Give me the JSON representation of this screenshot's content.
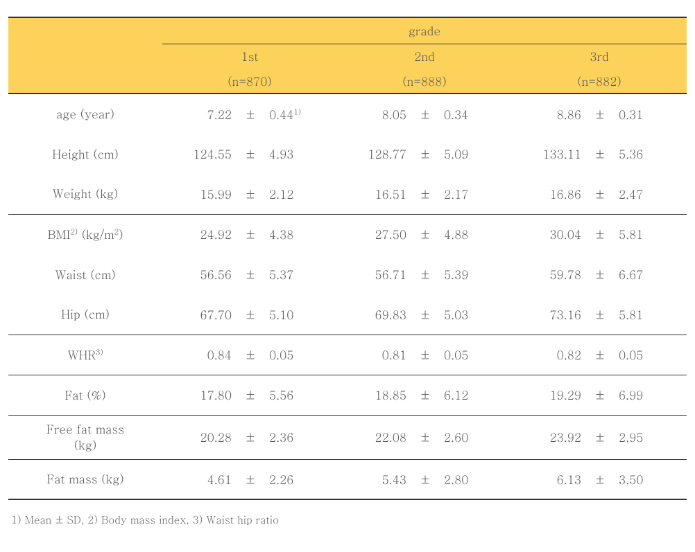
{
  "colors": {
    "header_bg": "#fcd25a",
    "text": "#555555",
    "border": "#333333",
    "footnote": "#666666",
    "background": "#ffffff"
  },
  "typography": {
    "body_fontsize_pt": 13,
    "footnote_fontsize_pt": 11,
    "font_family": "Batang / serif"
  },
  "header": {
    "span_title": "grade",
    "groups": [
      {
        "label": "1st",
        "n": "(n=870)"
      },
      {
        "label": "2nd",
        "n": "(n=888)"
      },
      {
        "label": "3rd",
        "n": "(n=882)"
      }
    ]
  },
  "pm": "±",
  "rows": [
    {
      "label_html": "age (year)",
      "g": [
        {
          "m": "7.22",
          "s": "0.44",
          "sup": "1)"
        },
        {
          "m": "8.05",
          "s": "0.34"
        },
        {
          "m": "8.86",
          "s": "0.31"
        }
      ],
      "rule": false
    },
    {
      "label_html": "Height (cm)",
      "g": [
        {
          "m": "124.55",
          "s": "4.93"
        },
        {
          "m": "128.77",
          "s": "5.09"
        },
        {
          "m": "133.11",
          "s": "5.36"
        }
      ],
      "rule": false
    },
    {
      "label_html": "Weight (kg)",
      "g": [
        {
          "m": "15.99",
          "s": "2.12"
        },
        {
          "m": "16.51",
          "s": "2.17"
        },
        {
          "m": "16.86",
          "s": "2.47"
        }
      ],
      "rule": true
    },
    {
      "label_html": "BMI<sup>2)</sup> (kg/m<sup>2</sup>)",
      "g": [
        {
          "m": "24.92",
          "s": "4.38"
        },
        {
          "m": "27.50",
          "s": "4.88"
        },
        {
          "m": "30.04",
          "s": "5.81"
        }
      ],
      "rule": false
    },
    {
      "label_html": "Waist (cm)",
      "g": [
        {
          "m": "56.56",
          "s": "5.37"
        },
        {
          "m": "56.71",
          "s": "5.39"
        },
        {
          "m": "59.78",
          "s": "6.67"
        }
      ],
      "rule": false
    },
    {
      "label_html": "Hip (cm)",
      "g": [
        {
          "m": "67.70",
          "s": "5.10"
        },
        {
          "m": "69.83",
          "s": "5.03"
        },
        {
          "m": "73.16",
          "s": "5.81"
        }
      ],
      "rule": true
    },
    {
      "label_html": "WHR<sup>3)</sup>",
      "g": [
        {
          "m": "0.84",
          "s": "0.05"
        },
        {
          "m": "0.81",
          "s": "0.05"
        },
        {
          "m": "0.82",
          "s": "0.05"
        }
      ],
      "rule": true
    },
    {
      "label_html": "Fat (%)",
      "g": [
        {
          "m": "17.80",
          "s": "5.56"
        },
        {
          "m": "18.85",
          "s": "6.12"
        },
        {
          "m": "19.29",
          "s": "6.99"
        }
      ],
      "rule": true
    },
    {
      "label_html": "Free fat mass<br>(kg)",
      "g": [
        {
          "m": "20.28",
          "s": "2.36"
        },
        {
          "m": "22.08",
          "s": "2.60"
        },
        {
          "m": "23.92",
          "s": "2.95"
        }
      ],
      "rule": true,
      "tall": true
    },
    {
      "label_html": "Fat mass (kg)",
      "g": [
        {
          "m": "4.61",
          "s": "2.26"
        },
        {
          "m": "5.43",
          "s": "2.80"
        },
        {
          "m": "6.13",
          "s": "3.50"
        }
      ],
      "rule": false
    }
  ],
  "footnotes": [
    "1) Mean ± SD",
    "2) Body mass index",
    "3) Waist hip ratio"
  ]
}
